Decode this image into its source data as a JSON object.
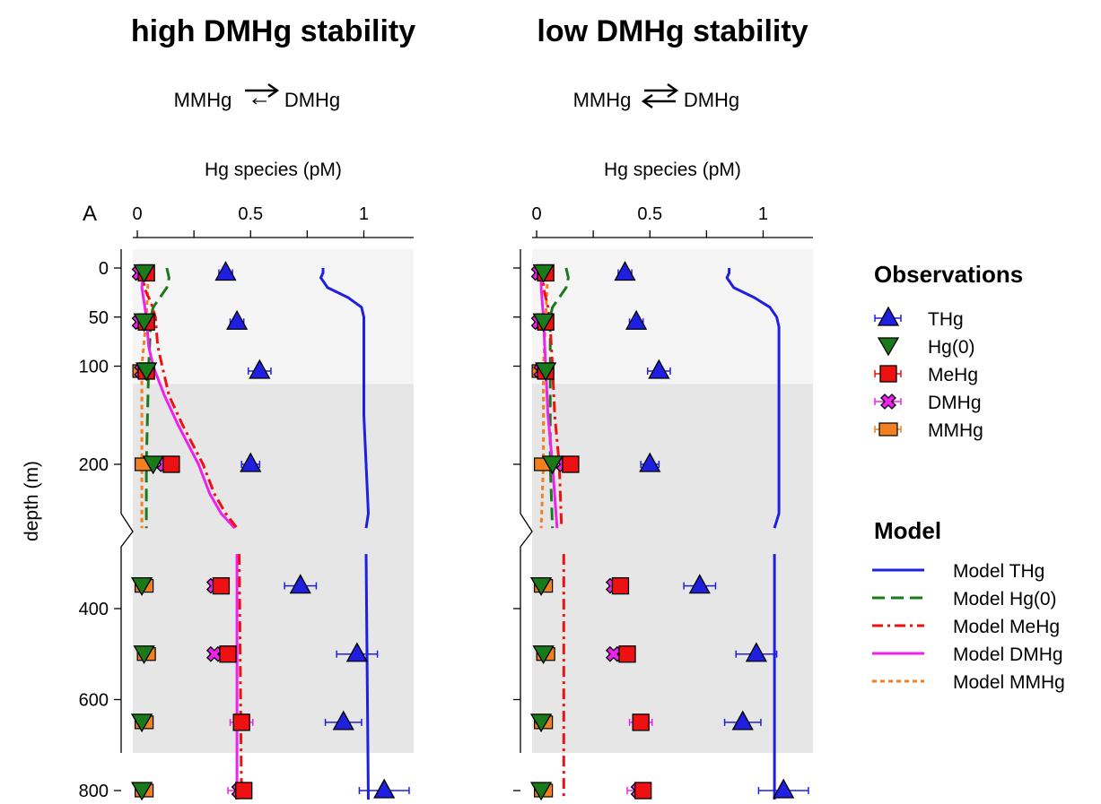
{
  "chart_data": {
    "type": "scatter",
    "xlabel": "Hg species (pM)",
    "ylabel": "depth (m)",
    "panel_label": "A",
    "xlim": [
      -0.02,
      1.22
    ],
    "xticks": [
      0,
      0.5,
      1
    ],
    "xtick_labels": [
      "0",
      "0.5",
      "1"
    ],
    "ylim_upper_segment": [
      -20,
      265
    ],
    "ylim_lower_segment": [
      265,
      820
    ],
    "yticks": [
      0,
      50,
      100,
      200,
      400,
      600,
      800
    ],
    "mixed_layer_boundary_depth": 118,
    "shading_colors": {
      "upper": "#f5f5f5",
      "lower": "#e6e6e6"
    },
    "observations_legend_title": "Observations",
    "model_legend_title": "Model",
    "series_styles": {
      "THg": {
        "color": "#1f1fe0",
        "marker": "triangle-up"
      },
      "Hg0": {
        "color": "#1a7a1a",
        "marker": "triangle-down"
      },
      "MeHg": {
        "color": "#ee1111",
        "marker": "square"
      },
      "DMHg": {
        "color": "#ee22ee",
        "marker": "cross"
      },
      "MMHg": {
        "color": "#f08020",
        "marker": "small-square"
      },
      "Model THg": {
        "color": "#1f1fe0",
        "dash": ""
      },
      "Model Hg0": {
        "color": "#1a7a1a",
        "dash": "14,7"
      },
      "Model MeHg": {
        "color": "#ee1111",
        "dash": "12,5,3,5"
      },
      "Model DMHg": {
        "color": "#ee22ee",
        "dash": ""
      },
      "Model MMHg": {
        "color": "#f08020",
        "dash": "5,4"
      }
    },
    "observations": {
      "THg": [
        {
          "depth": 5,
          "value": 0.39,
          "err": 0.03
        },
        {
          "depth": 55,
          "value": 0.44,
          "err": 0.03
        },
        {
          "depth": 105,
          "value": 0.54,
          "err": 0.05
        },
        {
          "depth": 200,
          "value": 0.5,
          "err": 0.04
        },
        {
          "depth": 350,
          "value": 0.72,
          "err": 0.07
        },
        {
          "depth": 500,
          "value": 0.97,
          "err": 0.09
        },
        {
          "depth": 650,
          "value": 0.91,
          "err": 0.08
        },
        {
          "depth": 800,
          "value": 1.09,
          "err": 0.11
        }
      ],
      "Hg0": [
        {
          "depth": 5,
          "value": 0.03
        },
        {
          "depth": 55,
          "value": 0.03
        },
        {
          "depth": 105,
          "value": 0.04
        },
        {
          "depth": 200,
          "value": 0.07
        },
        {
          "depth": 350,
          "value": 0.02
        },
        {
          "depth": 500,
          "value": 0.03
        },
        {
          "depth": 650,
          "value": 0.02
        },
        {
          "depth": 800,
          "value": 0.02
        }
      ],
      "MeHg": [
        {
          "depth": 5,
          "value": 0.04,
          "err": 0.01
        },
        {
          "depth": 55,
          "value": 0.04,
          "err": 0.01
        },
        {
          "depth": 105,
          "value": 0.04,
          "err": 0.01
        },
        {
          "depth": 200,
          "value": 0.15,
          "err": 0.02
        },
        {
          "depth": 350,
          "value": 0.37,
          "err": 0.02
        },
        {
          "depth": 500,
          "value": 0.4,
          "err": 0.02
        },
        {
          "depth": 650,
          "value": 0.46,
          "err": 0.03
        },
        {
          "depth": 800,
          "value": 0.47,
          "err": 0.03
        }
      ],
      "DMHg": [
        {
          "depth": 5,
          "value": 0.01,
          "err": 0.005
        },
        {
          "depth": 55,
          "value": 0.01,
          "err": 0.005
        },
        {
          "depth": 105,
          "value": 0.02,
          "err": 0.005
        },
        {
          "depth": 200,
          "value": 0.12,
          "err": 0.01
        },
        {
          "depth": 350,
          "value": 0.34,
          "err": 0.02
        },
        {
          "depth": 500,
          "value": 0.34,
          "err": 0.02
        },
        {
          "depth": 650,
          "value": 0.46,
          "err": 0.05
        },
        {
          "depth": 800,
          "value": 0.45,
          "err": 0.05
        }
      ],
      "MMHg": [
        {
          "depth": 5,
          "value": 0.03
        },
        {
          "depth": 55,
          "value": 0.03
        },
        {
          "depth": 105,
          "value": 0.02
        },
        {
          "depth": 200,
          "value": 0.03
        },
        {
          "depth": 350,
          "value": 0.03
        },
        {
          "depth": 500,
          "value": 0.04
        },
        {
          "depth": 650,
          "value": 0.03
        },
        {
          "depth": 800,
          "value": 0.03
        }
      ]
    },
    "panels": [
      {
        "title": "high DMHg stability",
        "reaction_left": "MMHg",
        "reaction_right": "DMHg",
        "reverse_arrow": "small",
        "model": {
          "Model THg": [
            [
              0,
              0.82
            ],
            [
              5,
              0.82
            ],
            [
              10,
              0.81
            ],
            [
              20,
              0.84
            ],
            [
              30,
              0.93
            ],
            [
              40,
              0.99
            ],
            [
              50,
              1.0
            ],
            [
              60,
              1.0
            ],
            [
              70,
              1.0
            ],
            [
              90,
              1.0
            ],
            [
              150,
              1.0
            ],
            [
              200,
              1.01
            ],
            [
              250,
              1.02
            ],
            [
              265,
              1.01
            ],
            [
              280,
              1.01
            ],
            [
              820,
              1.02
            ]
          ],
          "Model Hg0": [
            [
              0,
              0.13
            ],
            [
              10,
              0.14
            ],
            [
              20,
              0.13
            ],
            [
              30,
              0.1
            ],
            [
              40,
              0.07
            ],
            [
              50,
              0.06
            ],
            [
              100,
              0.05
            ],
            [
              200,
              0.04
            ],
            [
              265,
              0.04
            ],
            [
              820,
              0.04
            ]
          ],
          "Model MeHg": [
            [
              0,
              0.04
            ],
            [
              10,
              0.03
            ],
            [
              20,
              0.03
            ],
            [
              35,
              0.06
            ],
            [
              50,
              0.08
            ],
            [
              80,
              0.09
            ],
            [
              100,
              0.11
            ],
            [
              130,
              0.14
            ],
            [
              160,
              0.2
            ],
            [
              200,
              0.29
            ],
            [
              230,
              0.34
            ],
            [
              250,
              0.39
            ],
            [
              265,
              0.44
            ],
            [
              280,
              0.45
            ],
            [
              820,
              0.46
            ]
          ],
          "Model DMHg": [
            [
              0,
              0.03
            ],
            [
              20,
              0.02
            ],
            [
              50,
              0.04
            ],
            [
              80,
              0.05
            ],
            [
              100,
              0.07
            ],
            [
              130,
              0.12
            ],
            [
              160,
              0.18
            ],
            [
              200,
              0.27
            ],
            [
              230,
              0.32
            ],
            [
              250,
              0.37
            ],
            [
              265,
              0.43
            ],
            [
              280,
              0.44
            ],
            [
              820,
              0.44
            ]
          ],
          "Model MMHg": [
            [
              0,
              0.05
            ],
            [
              50,
              0.04
            ],
            [
              100,
              0.02
            ],
            [
              200,
              0.02
            ],
            [
              265,
              0.02
            ],
            [
              820,
              0.02
            ]
          ]
        }
      },
      {
        "title": "low DMHg stability",
        "reaction_left": "MMHg",
        "reaction_right": "DMHg",
        "reverse_arrow": "full",
        "model": {
          "Model THg": [
            [
              0,
              0.85
            ],
            [
              5,
              0.85
            ],
            [
              10,
              0.84
            ],
            [
              20,
              0.87
            ],
            [
              30,
              0.96
            ],
            [
              40,
              1.03
            ],
            [
              50,
              1.06
            ],
            [
              60,
              1.07
            ],
            [
              80,
              1.07
            ],
            [
              120,
              1.07
            ],
            [
              200,
              1.07
            ],
            [
              250,
              1.07
            ],
            [
              265,
              1.05
            ],
            [
              280,
              1.05
            ],
            [
              820,
              1.05
            ]
          ],
          "Model Hg0": [
            [
              0,
              0.13
            ],
            [
              10,
              0.14
            ],
            [
              20,
              0.13
            ],
            [
              30,
              0.1
            ],
            [
              40,
              0.07
            ],
            [
              50,
              0.06
            ],
            [
              100,
              0.06
            ],
            [
              200,
              0.06
            ],
            [
              265,
              0.07
            ],
            [
              820,
              0.07
            ]
          ],
          "Model MeHg": [
            [
              0,
              0.04
            ],
            [
              10,
              0.03
            ],
            [
              20,
              0.03
            ],
            [
              40,
              0.05
            ],
            [
              60,
              0.06
            ],
            [
              100,
              0.07
            ],
            [
              150,
              0.08
            ],
            [
              200,
              0.1
            ],
            [
              265,
              0.11
            ],
            [
              280,
              0.12
            ],
            [
              820,
              0.12
            ]
          ],
          "Model DMHg": [
            [
              0,
              0.02
            ],
            [
              20,
              0.02
            ],
            [
              50,
              0.03
            ],
            [
              100,
              0.04
            ],
            [
              150,
              0.05
            ],
            [
              200,
              0.07
            ],
            [
              265,
              0.09
            ],
            [
              820,
              0.09
            ]
          ],
          "Model MMHg": [
            [
              0,
              0.05
            ],
            [
              50,
              0.04
            ],
            [
              100,
              0.03
            ],
            [
              200,
              0.03
            ],
            [
              265,
              0.02
            ],
            [
              820,
              0.02
            ]
          ]
        }
      }
    ],
    "legend_observations": [
      {
        "key": "THg",
        "label": "THg"
      },
      {
        "key": "Hg0",
        "label": "Hg(0)"
      },
      {
        "key": "MeHg",
        "label": "MeHg"
      },
      {
        "key": "DMHg",
        "label": "DMHg"
      },
      {
        "key": "MMHg",
        "label": "MMHg"
      }
    ],
    "legend_model": [
      {
        "key": "Model THg",
        "label": "Model THg"
      },
      {
        "key": "Model Hg0",
        "label": "Model Hg(0)"
      },
      {
        "key": "Model MeHg",
        "label": "Model MeHg"
      },
      {
        "key": "Model DMHg",
        "label": "Model DMHg"
      },
      {
        "key": "Model MMHg",
        "label": "Model MMHg"
      }
    ]
  }
}
